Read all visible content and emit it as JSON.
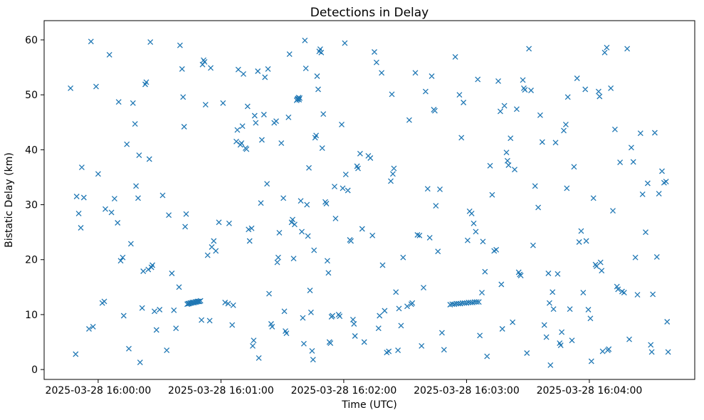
{
  "figure": {
    "title": "Detections in Delay",
    "xlabel": "Time (UTC)",
    "ylabel": "Bistatic Delay (km)"
  },
  "chart_data": {
    "type": "scatter",
    "title": "Detections in Delay",
    "xlabel": "Time (UTC)",
    "ylabel": "Bistatic Delay (km)",
    "marker": "x",
    "marker_color": "#1f77b4",
    "grid": false,
    "legend": null,
    "x_unit": "seconds since 2025-03-28 16:00:00 UTC",
    "x_tick_seconds": [
      0,
      60,
      120,
      180,
      240
    ],
    "x_tick_labels": [
      "2025-03-28 16:00:00",
      "2025-03-28 16:01:00",
      "2025-03-28 16:02:00",
      "2025-03-28 16:03:00",
      "2025-03-28 16:04:00"
    ],
    "y_ticks": [
      0,
      10,
      20,
      30,
      40,
      50,
      60
    ],
    "xlim_seconds": [
      -26.4,
      291.5
    ],
    "ylim": [
      -1.8,
      63.5
    ],
    "points": [
      [
        -13.5,
        51.2
      ],
      [
        -11.0,
        2.8
      ],
      [
        -10.5,
        31.5
      ],
      [
        -9.5,
        28.4
      ],
      [
        -8.5,
        25.8
      ],
      [
        -8.0,
        36.8
      ],
      [
        -7.0,
        31.3
      ],
      [
        -4.5,
        7.4
      ],
      [
        -3.5,
        59.7
      ],
      [
        -2.5,
        7.8
      ],
      [
        -1.0,
        51.5
      ],
      [
        0.0,
        35.6
      ],
      [
        2.0,
        12.1
      ],
      [
        3.0,
        12.4
      ],
      [
        3.5,
        29.2
      ],
      [
        5.5,
        57.3
      ],
      [
        6.5,
        28.6
      ],
      [
        8.0,
        31.1
      ],
      [
        9.5,
        26.7
      ],
      [
        10.0,
        48.7
      ],
      [
        11.0,
        19.8
      ],
      [
        12.0,
        20.4
      ],
      [
        12.5,
        9.8
      ],
      [
        14.0,
        41.0
      ],
      [
        15.0,
        3.8
      ],
      [
        16.0,
        22.9
      ],
      [
        17.0,
        48.5
      ],
      [
        18.0,
        44.7
      ],
      [
        18.5,
        33.4
      ],
      [
        19.5,
        31.2
      ],
      [
        20.0,
        39.0
      ],
      [
        20.5,
        1.3
      ],
      [
        21.5,
        11.2
      ],
      [
        22.0,
        17.9
      ],
      [
        23.0,
        51.9
      ],
      [
        23.5,
        52.3
      ],
      [
        24.5,
        18.2
      ],
      [
        25.0,
        38.3
      ],
      [
        25.5,
        59.6
      ],
      [
        26.0,
        18.6
      ],
      [
        26.5,
        19.0
      ],
      [
        27.5,
        10.6
      ],
      [
        28.5,
        7.2
      ],
      [
        30.0,
        10.9
      ],
      [
        31.5,
        31.7
      ],
      [
        33.5,
        3.5
      ],
      [
        34.5,
        28.1
      ],
      [
        36.0,
        17.5
      ],
      [
        37.0,
        10.8
      ],
      [
        38.0,
        7.5
      ],
      [
        39.5,
        15.0
      ],
      [
        40.0,
        59.0
      ],
      [
        41.0,
        54.7
      ],
      [
        41.5,
        49.6
      ],
      [
        42.0,
        44.2
      ],
      [
        42.5,
        26.0
      ],
      [
        43.0,
        28.3
      ],
      [
        43.5,
        11.9
      ],
      [
        44.0,
        12.0
      ],
      [
        44.5,
        12.0
      ],
      [
        45.0,
        12.1
      ],
      [
        45.5,
        12.1
      ],
      [
        46.0,
        12.2
      ],
      [
        46.5,
        12.2
      ],
      [
        47.0,
        12.2
      ],
      [
        47.5,
        12.3
      ],
      [
        48.0,
        12.3
      ],
      [
        48.5,
        12.4
      ],
      [
        49.0,
        12.4
      ],
      [
        49.5,
        12.4
      ],
      [
        50.0,
        12.5
      ],
      [
        50.5,
        9.0
      ],
      [
        51.0,
        55.5
      ],
      [
        51.5,
        56.3
      ],
      [
        52.0,
        56.0
      ],
      [
        52.5,
        48.2
      ],
      [
        53.5,
        20.8
      ],
      [
        54.5,
        8.9
      ],
      [
        55.0,
        54.9
      ],
      [
        55.5,
        22.3
      ],
      [
        56.5,
        23.4
      ],
      [
        57.5,
        21.6
      ],
      [
        59.0,
        26.8
      ],
      [
        61.0,
        48.5
      ],
      [
        62.0,
        12.2
      ],
      [
        63.5,
        12.0
      ],
      [
        64.0,
        26.6
      ],
      [
        65.5,
        8.1
      ],
      [
        66.0,
        11.7
      ],
      [
        67.5,
        41.5
      ],
      [
        68.0,
        43.6
      ],
      [
        68.5,
        54.6
      ],
      [
        69.5,
        40.9
      ],
      [
        70.0,
        41.2
      ],
      [
        70.5,
        44.3
      ],
      [
        71.0,
        53.8
      ],
      [
        72.0,
        40.3
      ],
      [
        72.5,
        40.1
      ],
      [
        73.0,
        47.9
      ],
      [
        73.5,
        25.5
      ],
      [
        74.0,
        23.4
      ],
      [
        75.0,
        25.7
      ],
      [
        75.5,
        4.3
      ],
      [
        76.0,
        5.3
      ],
      [
        76.5,
        46.2
      ],
      [
        77.0,
        44.9
      ],
      [
        78.0,
        54.3
      ],
      [
        78.5,
        2.1
      ],
      [
        79.5,
        30.3
      ],
      [
        80.0,
        41.8
      ],
      [
        81.0,
        46.4
      ],
      [
        81.5,
        53.2
      ],
      [
        82.5,
        33.8
      ],
      [
        83.0,
        54.7
      ],
      [
        83.5,
        13.8
      ],
      [
        84.5,
        8.3
      ],
      [
        85.0,
        7.8
      ],
      [
        86.0,
        44.9
      ],
      [
        87.0,
        45.2
      ],
      [
        87.5,
        19.5
      ],
      [
        88.0,
        20.4
      ],
      [
        88.5,
        24.9
      ],
      [
        89.5,
        41.2
      ],
      [
        90.5,
        31.2
      ],
      [
        91.0,
        10.6
      ],
      [
        91.5,
        7.0
      ],
      [
        92.0,
        6.6
      ],
      [
        93.0,
        45.9
      ],
      [
        93.5,
        57.4
      ],
      [
        94.5,
        26.8
      ],
      [
        95.0,
        27.3
      ],
      [
        95.5,
        20.2
      ],
      [
        96.0,
        26.4
      ],
      [
        97.0,
        49.0
      ],
      [
        97.3,
        49.2
      ],
      [
        97.6,
        49.3
      ],
      [
        97.9,
        49.5
      ],
      [
        98.2,
        49.1
      ],
      [
        98.5,
        49.4
      ],
      [
        99.0,
        30.7
      ],
      [
        99.5,
        25.1
      ],
      [
        100.0,
        9.4
      ],
      [
        100.5,
        4.7
      ],
      [
        101.0,
        59.9
      ],
      [
        101.5,
        54.8
      ],
      [
        102.0,
        30.0
      ],
      [
        102.5,
        24.3
      ],
      [
        103.0,
        36.7
      ],
      [
        103.5,
        14.4
      ],
      [
        104.0,
        10.4
      ],
      [
        104.5,
        3.4
      ],
      [
        105.0,
        1.8
      ],
      [
        105.5,
        21.7
      ],
      [
        106.0,
        42.2
      ],
      [
        106.5,
        42.6
      ],
      [
        107.0,
        53.4
      ],
      [
        107.5,
        51.0
      ],
      [
        108.0,
        57.9
      ],
      [
        108.5,
        58.3
      ],
      [
        109.0,
        57.7
      ],
      [
        109.5,
        40.3
      ],
      [
        110.0,
        46.5
      ],
      [
        111.0,
        30.5
      ],
      [
        111.5,
        30.2
      ],
      [
        112.0,
        19.8
      ],
      [
        112.5,
        17.6
      ],
      [
        113.0,
        5.0
      ],
      [
        113.5,
        4.8
      ],
      [
        114.0,
        9.6
      ],
      [
        114.5,
        9.8
      ],
      [
        115.5,
        33.3
      ],
      [
        116.0,
        27.5
      ],
      [
        117.5,
        10.0
      ],
      [
        118.0,
        9.7
      ],
      [
        119.0,
        44.6
      ],
      [
        119.5,
        33.0
      ],
      [
        120.5,
        59.4
      ],
      [
        121.0,
        35.5
      ],
      [
        122.0,
        32.6
      ],
      [
        123.0,
        23.6
      ],
      [
        123.5,
        23.4
      ],
      [
        124.5,
        9.1
      ],
      [
        125.0,
        8.3
      ],
      [
        125.5,
        6.1
      ],
      [
        126.5,
        37.0
      ],
      [
        127.0,
        36.6
      ],
      [
        128.0,
        39.3
      ],
      [
        129.0,
        25.6
      ],
      [
        130.0,
        5.0
      ],
      [
        132.0,
        38.9
      ],
      [
        133.0,
        38.5
      ],
      [
        134.0,
        24.4
      ],
      [
        135.0,
        57.8
      ],
      [
        136.0,
        55.9
      ],
      [
        137.0,
        7.5
      ],
      [
        137.5,
        9.8
      ],
      [
        138.5,
        54.0
      ],
      [
        139.0,
        19.0
      ],
      [
        140.0,
        10.7
      ],
      [
        141.0,
        3.1
      ],
      [
        142.0,
        3.3
      ],
      [
        143.0,
        34.3
      ],
      [
        143.5,
        50.1
      ],
      [
        144.0,
        35.6
      ],
      [
        144.5,
        36.6
      ],
      [
        145.5,
        14.1
      ],
      [
        146.5,
        3.5
      ],
      [
        147.0,
        11.1
      ],
      [
        148.0,
        8.0
      ],
      [
        149.0,
        20.4
      ],
      [
        151.0,
        11.5
      ],
      [
        152.0,
        45.4
      ],
      [
        153.0,
        11.9
      ],
      [
        153.5,
        12.1
      ],
      [
        155.0,
        54.0
      ],
      [
        156.0,
        24.5
      ],
      [
        157.0,
        24.4
      ],
      [
        158.0,
        4.3
      ],
      [
        159.0,
        14.9
      ],
      [
        160.0,
        50.6
      ],
      [
        161.0,
        32.9
      ],
      [
        162.0,
        24.0
      ],
      [
        163.0,
        53.4
      ],
      [
        164.0,
        47.3
      ],
      [
        164.5,
        47.1
      ],
      [
        165.0,
        29.8
      ],
      [
        166.0,
        21.5
      ],
      [
        167.0,
        32.8
      ],
      [
        168.0,
        6.7
      ],
      [
        169.0,
        3.6
      ],
      [
        172.0,
        11.8
      ],
      [
        173.0,
        11.9
      ],
      [
        174.0,
        11.9
      ],
      [
        175.0,
        12.0
      ],
      [
        176.0,
        12.0
      ],
      [
        177.0,
        12.0
      ],
      [
        178.0,
        12.1
      ],
      [
        179.0,
        12.1
      ],
      [
        180.0,
        12.1
      ],
      [
        181.0,
        12.2
      ],
      [
        182.0,
        12.2
      ],
      [
        183.0,
        12.2
      ],
      [
        184.0,
        12.3
      ],
      [
        185.0,
        12.3
      ],
      [
        186.0,
        12.3
      ],
      [
        174.5,
        56.9
      ],
      [
        176.5,
        50.0
      ],
      [
        177.5,
        42.2
      ],
      [
        178.5,
        48.6
      ],
      [
        180.5,
        23.5
      ],
      [
        181.5,
        28.8
      ],
      [
        182.5,
        28.4
      ],
      [
        183.5,
        26.6
      ],
      [
        184.5,
        25.1
      ],
      [
        185.5,
        52.8
      ],
      [
        186.5,
        6.2
      ],
      [
        187.5,
        14.0
      ],
      [
        188.0,
        23.3
      ],
      [
        189.0,
        17.8
      ],
      [
        190.0,
        2.4
      ],
      [
        191.5,
        37.1
      ],
      [
        192.5,
        31.8
      ],
      [
        193.5,
        21.6
      ],
      [
        194.5,
        21.8
      ],
      [
        195.5,
        52.5
      ],
      [
        196.5,
        47.0
      ],
      [
        197.0,
        15.5
      ],
      [
        197.5,
        7.4
      ],
      [
        198.5,
        48.0
      ],
      [
        199.5,
        39.5
      ],
      [
        200.0,
        38.0
      ],
      [
        200.5,
        37.2
      ],
      [
        201.5,
        42.1
      ],
      [
        202.5,
        8.6
      ],
      [
        203.5,
        36.4
      ],
      [
        204.5,
        47.4
      ],
      [
        205.5,
        17.7
      ],
      [
        206.0,
        17.3
      ],
      [
        206.5,
        17.1
      ],
      [
        207.5,
        52.7
      ],
      [
        208.0,
        51.2
      ],
      [
        208.5,
        50.9
      ],
      [
        209.5,
        3.0
      ],
      [
        210.5,
        58.4
      ],
      [
        211.5,
        50.8
      ],
      [
        212.5,
        22.6
      ],
      [
        213.5,
        33.4
      ],
      [
        215.0,
        29.5
      ],
      [
        216.0,
        46.3
      ],
      [
        217.0,
        41.4
      ],
      [
        218.0,
        8.1
      ],
      [
        219.0,
        5.9
      ],
      [
        220.0,
        17.5
      ],
      [
        220.5,
        12.1
      ],
      [
        221.0,
        0.8
      ],
      [
        222.0,
        14.1
      ],
      [
        222.5,
        11.0
      ],
      [
        223.5,
        41.3
      ],
      [
        224.5,
        17.4
      ],
      [
        225.5,
        4.8
      ],
      [
        226.0,
        4.4
      ],
      [
        226.5,
        6.8
      ],
      [
        227.5,
        43.5
      ],
      [
        228.5,
        44.6
      ],
      [
        229.0,
        33.0
      ],
      [
        229.5,
        49.6
      ],
      [
        230.5,
        11.0
      ],
      [
        231.5,
        5.3
      ],
      [
        232.5,
        36.9
      ],
      [
        234.0,
        53.0
      ],
      [
        235.0,
        23.2
      ],
      [
        236.0,
        25.2
      ],
      [
        237.0,
        14.0
      ],
      [
        238.0,
        51.0
      ],
      [
        238.5,
        23.4
      ],
      [
        239.5,
        10.9
      ],
      [
        240.5,
        9.3
      ],
      [
        241.0,
        1.5
      ],
      [
        242.0,
        31.2
      ],
      [
        243.0,
        19.1
      ],
      [
        243.5,
        18.8
      ],
      [
        244.5,
        50.6
      ],
      [
        245.0,
        49.7
      ],
      [
        245.5,
        19.5
      ],
      [
        246.0,
        18.0
      ],
      [
        246.5,
        3.3
      ],
      [
        247.5,
        57.7
      ],
      [
        248.5,
        58.6
      ],
      [
        249.0,
        3.5
      ],
      [
        249.5,
        3.7
      ],
      [
        250.5,
        51.2
      ],
      [
        251.5,
        28.9
      ],
      [
        252.5,
        43.7
      ],
      [
        253.5,
        15.1
      ],
      [
        254.0,
        14.6
      ],
      [
        255.0,
        37.7
      ],
      [
        256.0,
        14.2
      ],
      [
        257.0,
        14.0
      ],
      [
        258.5,
        58.4
      ],
      [
        259.5,
        5.5
      ],
      [
        260.5,
        40.4
      ],
      [
        261.5,
        37.8
      ],
      [
        262.5,
        20.4
      ],
      [
        263.5,
        13.6
      ],
      [
        265.0,
        43.0
      ],
      [
        266.0,
        31.9
      ],
      [
        267.5,
        25.0
      ],
      [
        268.5,
        33.9
      ],
      [
        270.0,
        4.5
      ],
      [
        270.5,
        3.2
      ],
      [
        271.0,
        13.7
      ],
      [
        272.0,
        43.1
      ],
      [
        273.0,
        20.5
      ],
      [
        274.0,
        32.0
      ],
      [
        275.5,
        36.1
      ],
      [
        276.5,
        34.0
      ],
      [
        277.5,
        34.2
      ],
      [
        278.0,
        8.7
      ],
      [
        278.5,
        3.2
      ]
    ]
  }
}
